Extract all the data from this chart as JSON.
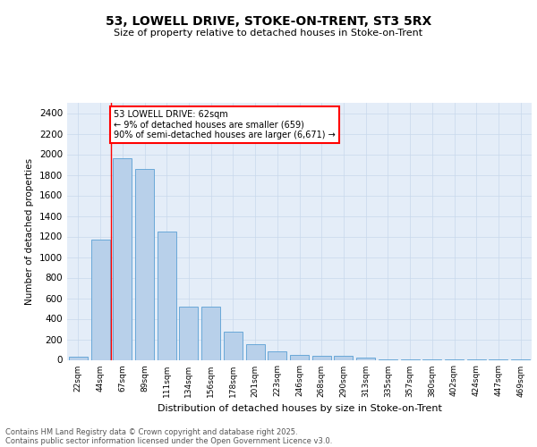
{
  "title1": "53, LOWELL DRIVE, STOKE-ON-TRENT, ST3 5RX",
  "title2": "Size of property relative to detached houses in Stoke-on-Trent",
  "xlabel": "Distribution of detached houses by size in Stoke-on-Trent",
  "ylabel": "Number of detached properties",
  "categories": [
    "22sqm",
    "44sqm",
    "67sqm",
    "89sqm",
    "111sqm",
    "134sqm",
    "156sqm",
    "178sqm",
    "201sqm",
    "223sqm",
    "246sqm",
    "268sqm",
    "290sqm",
    "313sqm",
    "335sqm",
    "357sqm",
    "380sqm",
    "402sqm",
    "424sqm",
    "447sqm",
    "469sqm"
  ],
  "values": [
    28,
    1170,
    1960,
    1855,
    1248,
    515,
    515,
    270,
    155,
    85,
    48,
    40,
    35,
    18,
    8,
    5,
    3,
    2,
    1,
    1,
    1
  ],
  "bar_color": "#b8d0ea",
  "bar_edge_color": "#5a9fd4",
  "vline_color": "red",
  "vline_x_index": 1.5,
  "annotation_text": "53 LOWELL DRIVE: 62sqm\n← 9% of detached houses are smaller (659)\n90% of semi-detached houses are larger (6,671) →",
  "annotation_box_color": "red",
  "ylim": [
    0,
    2500
  ],
  "yticks": [
    0,
    200,
    400,
    600,
    800,
    1000,
    1200,
    1400,
    1600,
    1800,
    2000,
    2200,
    2400
  ],
  "grid_color": "#c8d8ec",
  "background_color": "#e4edf8",
  "footer_line1": "Contains HM Land Registry data © Crown copyright and database right 2025.",
  "footer_line2": "Contains public sector information licensed under the Open Government Licence v3.0."
}
